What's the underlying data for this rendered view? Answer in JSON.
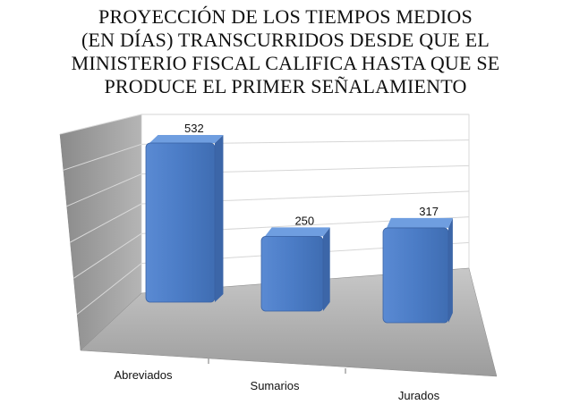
{
  "chart_data": {
    "type": "bar",
    "title": [
      "PROYECCIÓN DE LOS TIEMPOS MEDIOS",
      "(EN DÍAS) TRANSCURRIDOS DESDE QUE EL",
      "MINISTERIO FISCAL CALIFICA HASTA QUE SE",
      "PRODUCE EL PRIMER SEÑALAMIENTO"
    ],
    "categories": [
      "Abreviados",
      "Sumarios",
      "Jurados"
    ],
    "values": [
      532,
      250,
      317
    ],
    "data_labels": [
      "532",
      "250",
      "317"
    ],
    "ylim": [
      0,
      600
    ],
    "grid": true,
    "three_d": true,
    "colors": {
      "bar_front": "#4f7fc9",
      "bar_top": "#6f9ee0",
      "bar_side": "#3c66a8",
      "back_wall": "#ffffff",
      "side_wall": "#9b9b9b",
      "floor": "#a9a9a9"
    }
  }
}
